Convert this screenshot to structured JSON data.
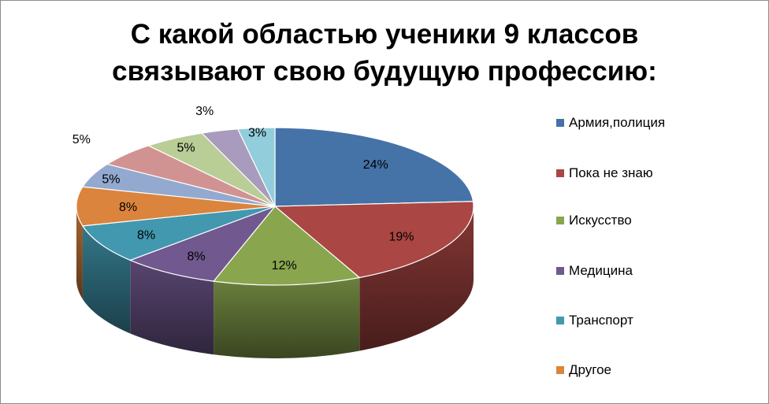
{
  "chart_data": {
    "type": "pie",
    "title_lines": [
      "С какой областью ученики 9 классов",
      "связывают свою будущую профессию:"
    ],
    "categories": [
      "Армия,полиция",
      "Пока не знаю",
      "Искусство",
      "Медицина",
      "Транспорт",
      "Другое",
      "",
      "",
      "",
      "",
      ""
    ],
    "values": [
      24,
      19,
      12,
      8,
      8,
      8,
      5,
      5,
      5,
      3,
      3
    ],
    "labels": [
      "24%",
      "19%",
      "12%",
      "8%",
      "8%",
      "8%",
      "5%",
      "5%",
      "5%",
      "3%",
      "3%"
    ],
    "colors": [
      "#4572A7",
      "#AA4643",
      "#89A54E",
      "#71588F",
      "#4198AF",
      "#DB843D",
      "#93A9CF",
      "#D19392",
      "#B9CD96",
      "#A99BBD",
      "#92CDDC"
    ],
    "legend_placement": "right",
    "style": "3d-pie"
  }
}
